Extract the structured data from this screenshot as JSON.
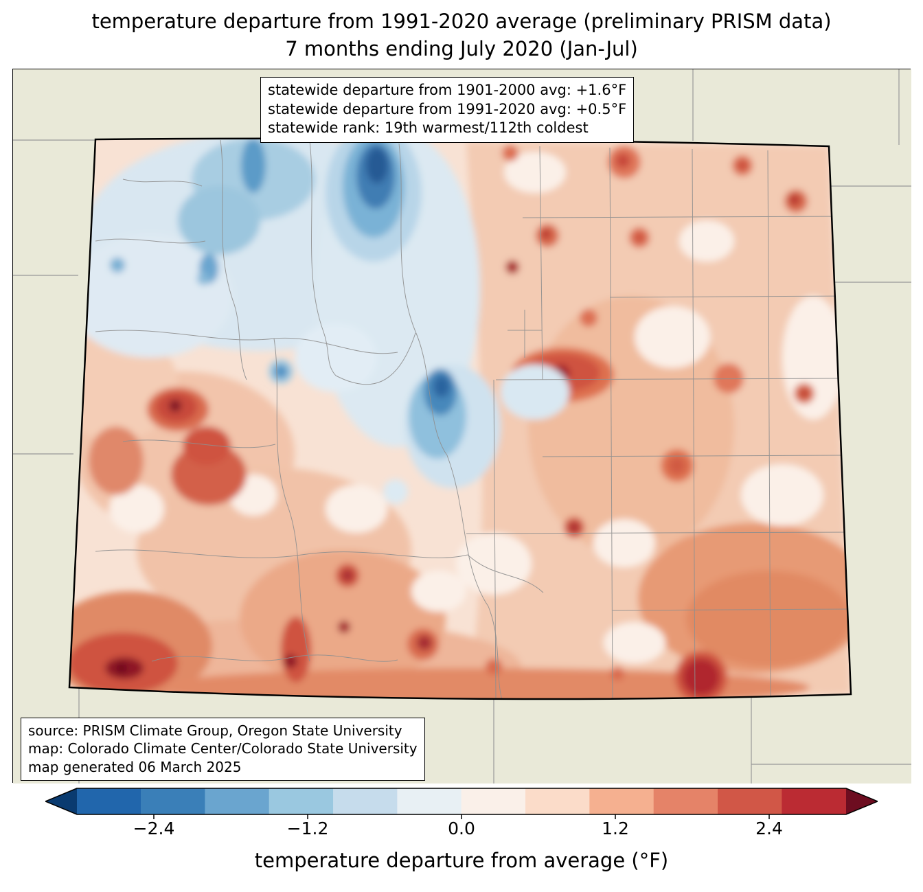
{
  "title": {
    "line1": "temperature departure from 1991-2020 average (preliminary PRISM data)",
    "line2": "7 months ending July 2020 (Jan-Jul)"
  },
  "stats_box": {
    "line1": "statewide departure from 1901-2000 avg: +1.6°F",
    "line2": "statewide departure from 1991-2020 avg: +0.5°F",
    "line3": "statewide rank: 19th warmest/112th coldest"
  },
  "source_box": {
    "line1": "source: PRISM Climate Group, Oregon State University",
    "line2": "map: Colorado Climate Center/Colorado State University",
    "line3": "map generated 06 March 2025"
  },
  "map": {
    "region": "Colorado",
    "background_color": "#e9e9d8",
    "state_border_color": "#000000",
    "county_line_color": "#8f8f8f"
  },
  "colorbar": {
    "label": "temperature departure from average (°F)",
    "ticks": [
      "−2.4",
      "−1.2",
      "0.0",
      "1.2",
      "2.4"
    ],
    "tick_values": [
      -2.4,
      -1.2,
      0.0,
      1.2,
      2.4
    ],
    "range": [
      -3,
      3
    ],
    "segment_colors": [
      "#2166ac",
      "#3a7fb8",
      "#6aa5cf",
      "#9ac8e0",
      "#c6dcec",
      "#e8f0f4",
      "#faf0e9",
      "#fbdcc9",
      "#f5b090",
      "#e58368",
      "#d15747",
      "#bb2b33"
    ],
    "left_arrow_color": "#0a3b70",
    "right_arrow_color": "#6d0d20"
  }
}
